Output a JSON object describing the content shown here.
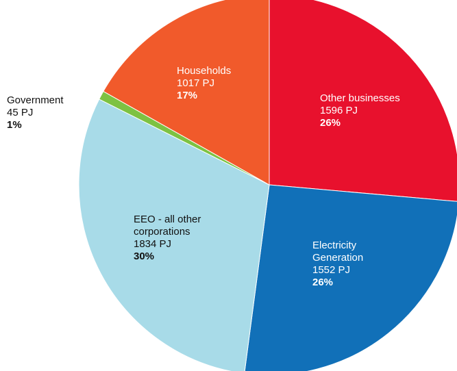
{
  "chart_data": {
    "type": "pie",
    "categories": [
      "Other businesses",
      "Electricity Generation",
      "EEO - all other corporations",
      "Government",
      "Households"
    ],
    "values": [
      1596,
      1552,
      1834,
      45,
      1017
    ],
    "value_labels": [
      "1596 PJ",
      "1552 PJ",
      "1834 PJ",
      "45 PJ",
      "1017 PJ"
    ],
    "shares": [
      26,
      26,
      30,
      1,
      17
    ],
    "share_labels": [
      "26%",
      "26%",
      "30%",
      "1%",
      "17%"
    ],
    "colors": [
      "#e8112d",
      "#1170b8",
      "#a8dbe8",
      "#7dc242",
      "#f15a2b"
    ]
  }
}
